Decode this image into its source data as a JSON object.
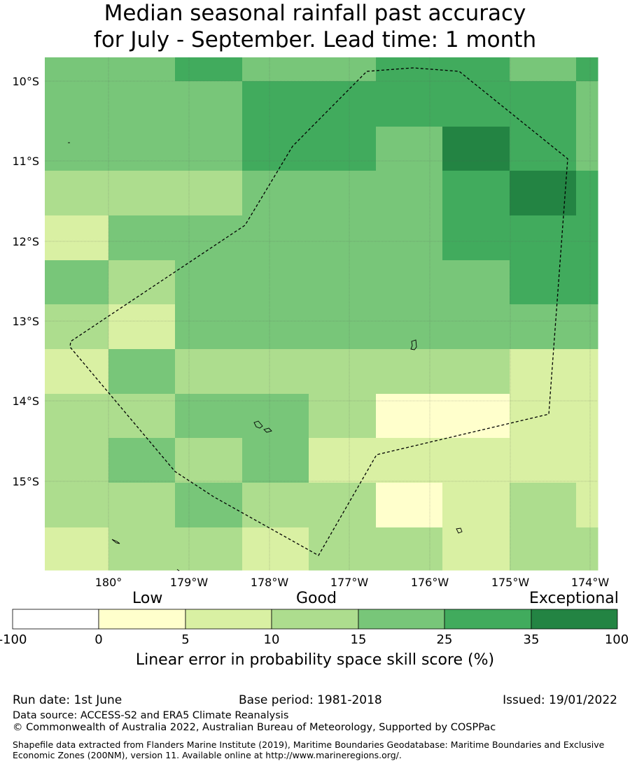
{
  "title_lines": [
    "Median seasonal rainfall past accuracy",
    "for July - September. Lead time: 1 month"
  ],
  "map": {
    "lat_labels": [
      "10°S",
      "11°S",
      "12°S",
      "13°S",
      "14°S",
      "15°S"
    ],
    "lon_labels": [
      "180°",
      "179°W",
      "178°W",
      "177°W",
      "176°W",
      "175°W",
      "174°W"
    ],
    "class_colors": [
      "#ffffff",
      "#ffffcc",
      "#d9f0a3",
      "#addd8e",
      "#78c679",
      "#41ab5d",
      "#238443"
    ],
    "grid_rows": [
      [
        4,
        4,
        5,
        4,
        4,
        5,
        5,
        4,
        5
      ],
      [
        4,
        4,
        4,
        5,
        5,
        5,
        5,
        5,
        4
      ],
      [
        4,
        4,
        4,
        5,
        5,
        4,
        6,
        5,
        4
      ],
      [
        3,
        3,
        3,
        4,
        4,
        4,
        5,
        6,
        5
      ],
      [
        2,
        4,
        4,
        4,
        4,
        4,
        5,
        5,
        5
      ],
      [
        4,
        3,
        4,
        4,
        4,
        4,
        4,
        5,
        5
      ],
      [
        3,
        2,
        4,
        4,
        4,
        4,
        4,
        4,
        4
      ],
      [
        2,
        4,
        3,
        3,
        3,
        3,
        3,
        2,
        2
      ],
      [
        3,
        3,
        4,
        4,
        3,
        1,
        1,
        2,
        2
      ],
      [
        3,
        4,
        3,
        4,
        2,
        2,
        2,
        2,
        2
      ],
      [
        3,
        3,
        4,
        3,
        3,
        1,
        2,
        3,
        2
      ],
      [
        2,
        3,
        3,
        2,
        3,
        3,
        2,
        3,
        3
      ]
    ]
  },
  "colorbar": {
    "category_labels": [
      "Low",
      "Good",
      "Exceptional"
    ],
    "tick_labels": [
      "-100",
      "0",
      "5",
      "10",
      "15",
      "25",
      "35",
      "100"
    ],
    "colors": [
      "#ffffff",
      "#ffffcc",
      "#d9f0a3",
      "#addd8e",
      "#78c679",
      "#41ab5d",
      "#238443"
    ],
    "title": "Linear error in probability space skill score (%)"
  },
  "footer": {
    "run_date": "Run date: 1st June",
    "base_period": "Base period: 1981-2018",
    "issued": "Issued: 19/01/2022",
    "data_source": "Data source: ACCESS-S2 and ERA5 Climate Reanalysis",
    "copyright": "© Commonwealth of Australia 2022, Australian Bureau of Meteorology, Supported by COSPPac",
    "shapefile": "Shapefile data extracted from Flanders Marine Institute (2019), Maritime Boundaries Geodatabase: Maritime Boundaries and Exclusive Economic Zones (200NM), version 11. Available online at http://www.marineregions.org/."
  }
}
